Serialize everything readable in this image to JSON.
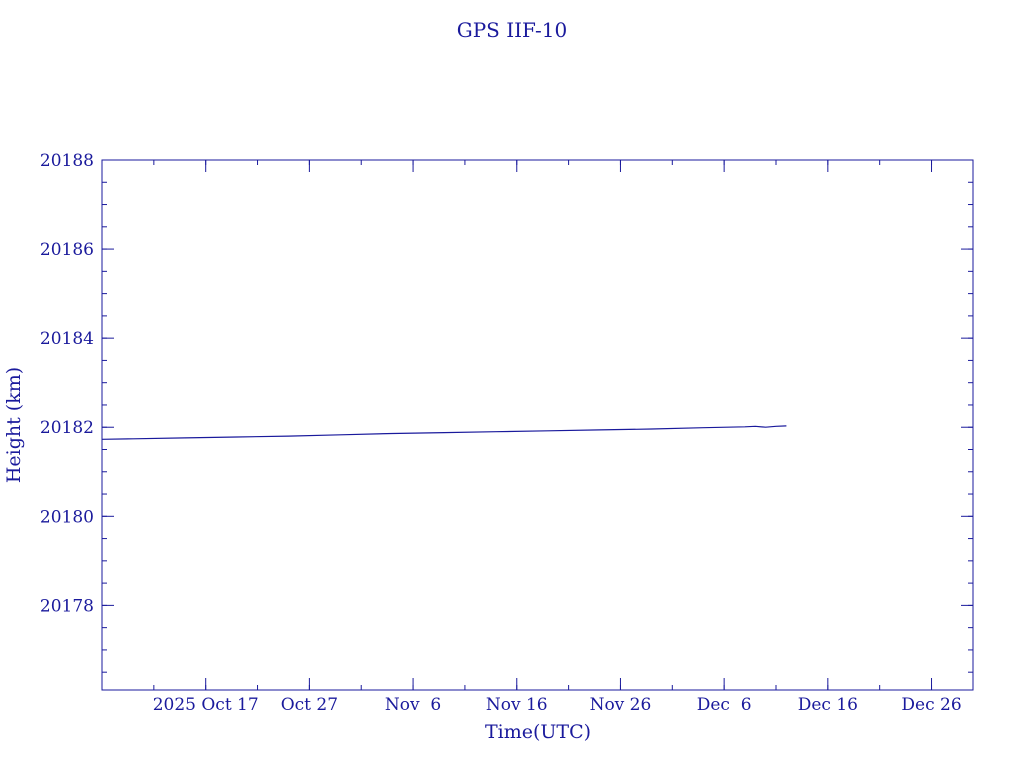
{
  "chart_data": {
    "type": "line",
    "title": "GPS IIF-10",
    "xlabel": "Time(UTC)",
    "ylabel": "Height (km)",
    "x_date_start": "2025-10-07",
    "x_date_end": "2025-12-31",
    "xlim_days": [
      0,
      84
    ],
    "ylim": [
      20176.1,
      20188.0
    ],
    "y_ticks": [
      20178,
      20180,
      20182,
      20184,
      20186,
      20188
    ],
    "y_tick_labels": [
      "20178",
      "20180",
      "20182",
      "20184",
      "20186",
      "20188"
    ],
    "x_ticks_days": [
      10,
      20,
      30,
      40,
      50,
      60,
      70,
      80
    ],
    "x_tick_labels": [
      "2025 Oct 17",
      "Oct 27",
      "Nov  6",
      "Nov 16",
      "Nov 26",
      "Dec  6",
      "Dec 16",
      "Dec 26"
    ],
    "minor_x_step_days": 5,
    "minor_y_step": 0.5,
    "grid": false,
    "series": [
      {
        "x": [
          "2025-10-07",
          "2025-10-10",
          "2025-10-15",
          "2025-10-20",
          "2025-10-25",
          "2025-10-30",
          "2025-11-04",
          "2025-11-09",
          "2025-11-14",
          "2025-11-19",
          "2025-11-24",
          "2025-11-29",
          "2025-12-04",
          "2025-12-08",
          "2025-12-09",
          "2025-12-10",
          "2025-12-11",
          "2025-12-12"
        ],
        "y": [
          20181.73,
          20181.74,
          20181.76,
          20181.78,
          20181.8,
          20181.83,
          20181.86,
          20181.88,
          20181.9,
          20181.92,
          20181.94,
          20181.96,
          20181.99,
          20182.01,
          20182.02,
          20182.0,
          20182.02,
          20182.03
        ]
      }
    ]
  },
  "colors": {
    "axis": "#1a1a9c",
    "series": "#1a1a9c",
    "background": "#ffffff"
  }
}
